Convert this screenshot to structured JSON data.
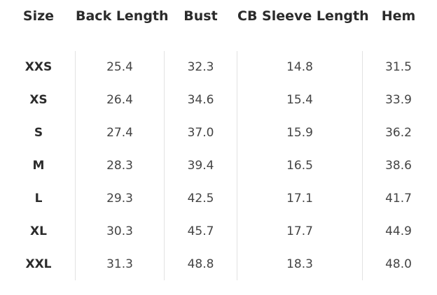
{
  "table": {
    "headers": [
      "Size",
      "Back Length",
      "Bust",
      "CB Sleeve Length",
      "Hem"
    ],
    "rows": [
      [
        "XXS",
        "25.4",
        "32.3",
        "14.8",
        "31.5"
      ],
      [
        "XS",
        "26.4",
        "34.6",
        "15.4",
        "33.9"
      ],
      [
        "S",
        "27.4",
        "37.0",
        "15.9",
        "36.2"
      ],
      [
        "M",
        "28.3",
        "39.4",
        "16.5",
        "38.6"
      ],
      [
        "L",
        "29.3",
        "42.5",
        "17.1",
        "41.7"
      ],
      [
        "XL",
        "30.3",
        "45.7",
        "17.7",
        "44.9"
      ],
      [
        "XXL",
        "31.3",
        "48.8",
        "18.3",
        "48.0"
      ]
    ]
  },
  "colors": {
    "header_text": "#2b2b2b",
    "cell_text": "#444444",
    "divider": "#e2e2e2",
    "background": "#ffffff"
  }
}
